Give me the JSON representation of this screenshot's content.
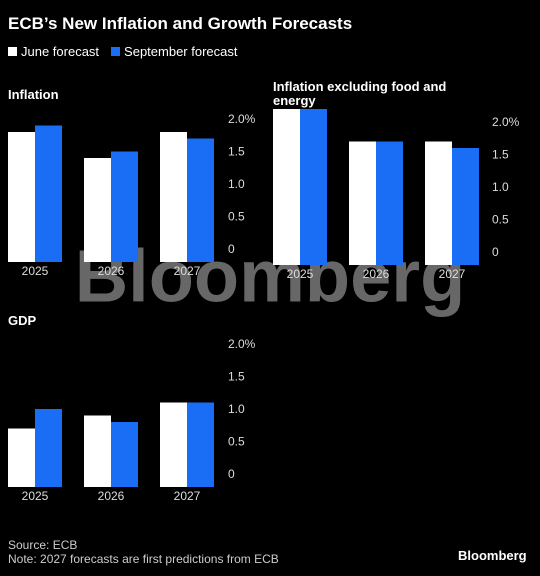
{
  "header": {
    "title": "ECB’s New Inflation and Growth Forecasts"
  },
  "legend": [
    "June forecast",
    "September forecast"
  ],
  "chart_data": [
    {
      "type": "bar",
      "title": "Inflation",
      "categories": [
        "2025",
        "2026",
        "2027"
      ],
      "series": [
        {
          "color": "#ffffff",
          "values": [
            2.0,
            1.6,
            2.0
          ]
        },
        {
          "color": "#1a6ef5",
          "values": [
            2.1,
            1.7,
            1.9
          ]
        }
      ],
      "ylim": [
        0,
        2.3
      ],
      "yticks": [
        0,
        0.5,
        {
          "value": 1,
          "label": "1.0"
        },
        1.5,
        {
          "value": 2,
          "label": "2.0%"
        }
      ]
    },
    {
      "type": "bar",
      "title": "Inflation excluding food and energy",
      "categories": [
        "2025",
        "2026",
        "2027"
      ],
      "series": [
        {
          "color": "#ffffff",
          "values": [
            2.4,
            1.9,
            1.9
          ]
        },
        {
          "color": "#1a6ef5",
          "values": [
            2.5,
            1.9,
            1.8
          ]
        }
      ],
      "ylim": [
        0,
        2.4
      ],
      "yticks": [
        0,
        0.5,
        {
          "value": 1,
          "label": "1.0"
        },
        1.5,
        {
          "value": 2,
          "label": "2.0%"
        }
      ]
    },
    {
      "type": "bar",
      "title": "GDP",
      "categories": [
        "2025",
        "2026",
        "2027"
      ],
      "series": [
        {
          "color": "#ffffff",
          "values": [
            0.9,
            1.1,
            1.3
          ]
        },
        {
          "color": "#1a6ef5",
          "values": [
            1.2,
            1.0,
            1.3
          ]
        }
      ],
      "ylim": [
        0,
        2.3
      ],
      "yticks": [
        0,
        0.5,
        {
          "value": 1,
          "label": "1.0"
        },
        1.5,
        {
          "value": 2,
          "label": "2.0%"
        }
      ]
    }
  ],
  "watermark": "Bloomberg",
  "footer": {
    "source": "Source: ECB",
    "note": "Note: 2027 forecasts are first predictions from ECB",
    "brand": "Bloomberg"
  }
}
